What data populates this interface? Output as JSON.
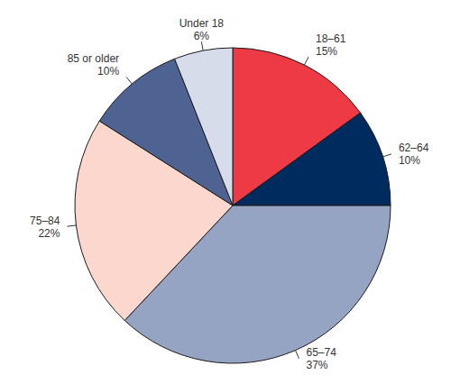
{
  "chart_data": {
    "type": "pie",
    "categories": [
      "18–61",
      "62–64",
      "65–74",
      "75–84",
      "85 or older",
      "Under 18"
    ],
    "values": [
      15,
      10,
      37,
      22,
      10,
      6
    ],
    "value_labels": [
      "15%",
      "10%",
      "37%",
      "22%",
      "10%",
      "6%"
    ],
    "colors": [
      "#ee3a45",
      "#002b5e",
      "#96a4c3",
      "#fcd7cd",
      "#4e6391",
      "#d6dce9"
    ],
    "data_labels": true
  }
}
